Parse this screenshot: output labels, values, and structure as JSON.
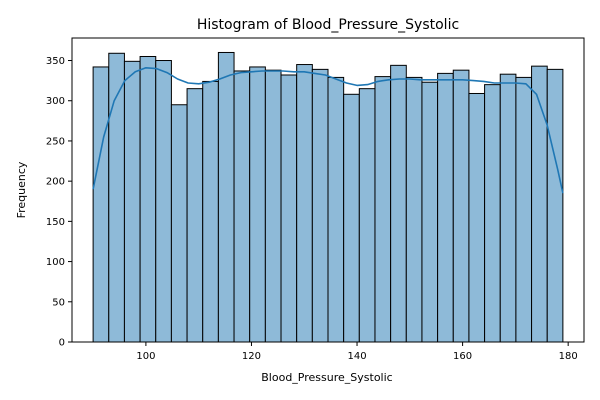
{
  "chart_data": {
    "type": "bar",
    "title": "Histogram of Blood_Pressure_Systolic",
    "xlabel": "Blood_Pressure_Systolic",
    "ylabel": "Frequency",
    "xlim": [
      86,
      183
    ],
    "ylim": [
      0,
      378
    ],
    "xticks": [
      100,
      120,
      140,
      160,
      180
    ],
    "yticks": [
      0,
      50,
      100,
      150,
      200,
      250,
      300,
      350
    ],
    "grid": false,
    "bin_start": 90,
    "bin_end": 179,
    "bin_counts": [
      342,
      359,
      349,
      355,
      350,
      295,
      315,
      324,
      360,
      337,
      342,
      338,
      332,
      345,
      339,
      329,
      308,
      315,
      330,
      344,
      329,
      323,
      334,
      338,
      309,
      320,
      333,
      329,
      343,
      339
    ],
    "kde": {
      "x": [
        90,
        92,
        94,
        96,
        98,
        100,
        102,
        104,
        106,
        108,
        110,
        112,
        114,
        116,
        118,
        120,
        122,
        124,
        126,
        128,
        130,
        132,
        134,
        136,
        138,
        140,
        142,
        144,
        146,
        148,
        150,
        152,
        154,
        156,
        158,
        160,
        162,
        164,
        166,
        168,
        170,
        172,
        174,
        176,
        178,
        179
      ],
      "y": [
        190,
        255,
        300,
        325,
        336,
        341,
        340,
        335,
        327,
        322,
        321,
        323,
        327,
        332,
        335,
        336,
        337,
        337,
        337,
        336,
        336,
        334,
        332,
        327,
        322,
        319,
        320,
        324,
        326,
        327,
        327,
        326,
        326,
        326,
        326,
        326,
        325,
        324,
        322,
        322,
        322,
        321,
        308,
        270,
        215,
        185
      ]
    },
    "colors": {
      "bar_fill": "#8ebad8",
      "bar_edge": "#000000",
      "kde_line": "#1f77b4"
    }
  }
}
